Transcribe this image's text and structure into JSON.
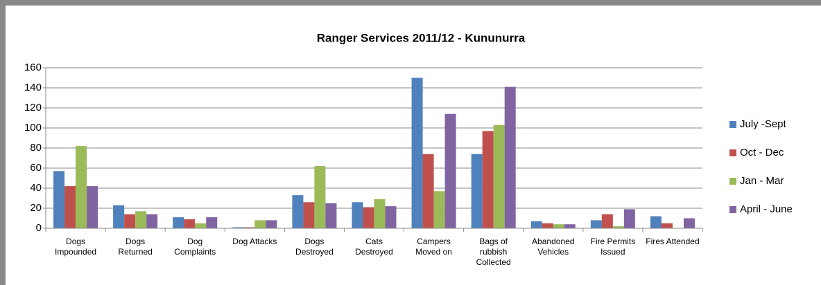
{
  "chart_data": {
    "type": "bar",
    "title": "Ranger Services 2011/12 - Kununurra",
    "categories": [
      "Dogs Impounded",
      "Dogs Returned",
      "Dog Complaints",
      "Dog Attacks",
      "Dogs Destroyed",
      "Cats Destroyed",
      "Campers Moved on",
      "Bags of rubbish Collected",
      "Abandoned Vehicles",
      "Fire Permits Issued",
      "Fires Attended"
    ],
    "series": [
      {
        "name": "July -Sept",
        "color": "#4f81bd",
        "values": [
          57,
          23,
          11,
          1,
          33,
          26,
          150,
          74,
          7,
          8,
          12
        ]
      },
      {
        "name": "Oct - Dec",
        "color": "#c0504d",
        "values": [
          42,
          14,
          9,
          1,
          26,
          21,
          74,
          97,
          5,
          14,
          5
        ]
      },
      {
        "name": "Jan - Mar",
        "color": "#9bbb59",
        "values": [
          82,
          17,
          5,
          8,
          62,
          29,
          37,
          103,
          4,
          2,
          0
        ]
      },
      {
        "name": "April - June",
        "color": "#8064a2",
        "values": [
          42,
          14,
          11,
          8,
          25,
          22,
          114,
          141,
          4,
          19,
          10
        ]
      }
    ],
    "ylim": [
      0,
      160
    ],
    "yticks": [
      0,
      20,
      40,
      60,
      80,
      100,
      120,
      140,
      160
    ],
    "grid": true,
    "legend": "right"
  }
}
